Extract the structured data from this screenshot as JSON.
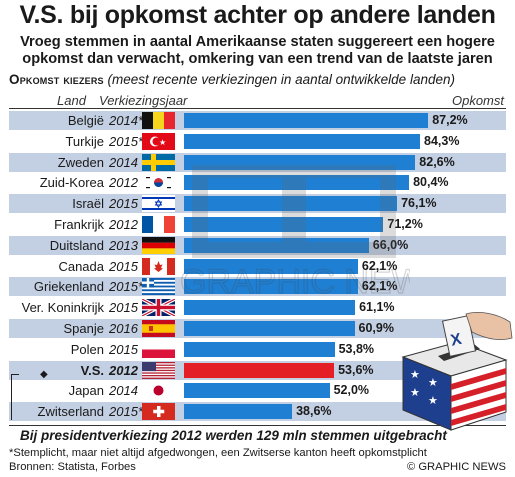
{
  "header": {
    "title": "V.S. bij opkomst achter op andere landen",
    "subtitle": "Vroeg stemmen in aantal Amerikaanse staten suggereert een hogere opkomst dan verwacht, omkering van een trend van de laatste jaren",
    "section_label": "Opkomst kiezers",
    "section_note": "(meest recente verkiezingen in aantal ontwikkelde landen)"
  },
  "columns": {
    "country": "Land",
    "year": "Verkiezingsjaar",
    "turnout": "Opkomst"
  },
  "chart_data": {
    "type": "bar",
    "orientation": "horizontal",
    "categories": [
      "België",
      "Turkije",
      "Zweden",
      "Zuid-Korea",
      "Israël",
      "Frankrijk",
      "Duitsland",
      "Canada",
      "Griekenland",
      "Ver. Koninkrijk",
      "Spanje",
      "Polen",
      "V.S.",
      "Japan",
      "Zwitserland"
    ],
    "years": [
      "2014*",
      "2015*",
      "2014",
      "2012",
      "2015",
      "2012",
      "2013",
      "2015",
      "2015*",
      "2015",
      "2016",
      "2015",
      "2012",
      "2014",
      "2015*"
    ],
    "values": [
      87.2,
      84.3,
      82.6,
      80.4,
      76.1,
      71.2,
      66.0,
      62.1,
      62.1,
      61.1,
      60.9,
      53.8,
      53.6,
      52.0,
      38.6
    ],
    "labels": [
      "87,2%",
      "84,3%",
      "82,6%",
      "80,4%",
      "76,1%",
      "71,2%",
      "66,0%",
      "62,1%",
      "62,1%",
      "61,1%",
      "60,9%",
      "53,8%",
      "53,6%",
      "52,0%",
      "38,6%"
    ],
    "flags": [
      "belgium",
      "turkey",
      "sweden",
      "south-korea",
      "israel",
      "france",
      "germany",
      "canada",
      "greece",
      "uk",
      "spain",
      "poland",
      "usa",
      "japan",
      "switzerland"
    ],
    "highlight": "V.S.",
    "colors": {
      "bar": "#1f7fd2",
      "highlight": "#e31e24",
      "row_band": "#c3cfe2"
    },
    "xlim": [
      0,
      100
    ]
  },
  "footer": {
    "highlight_note": "Bij presidentverkiezing 2012 werden 129 mln stemmen uitgebracht",
    "footnote": "*Stemplicht, maar niet altijd afgedwongen, een Zwitserse kanton heeft opkomstplicht",
    "sources": "Bronnen: Statista, Forbes",
    "copyright": "© GRAPHIC NEWS"
  },
  "watermark": {
    "logo": "GN",
    "text": "GRAPHIC NEWS"
  }
}
